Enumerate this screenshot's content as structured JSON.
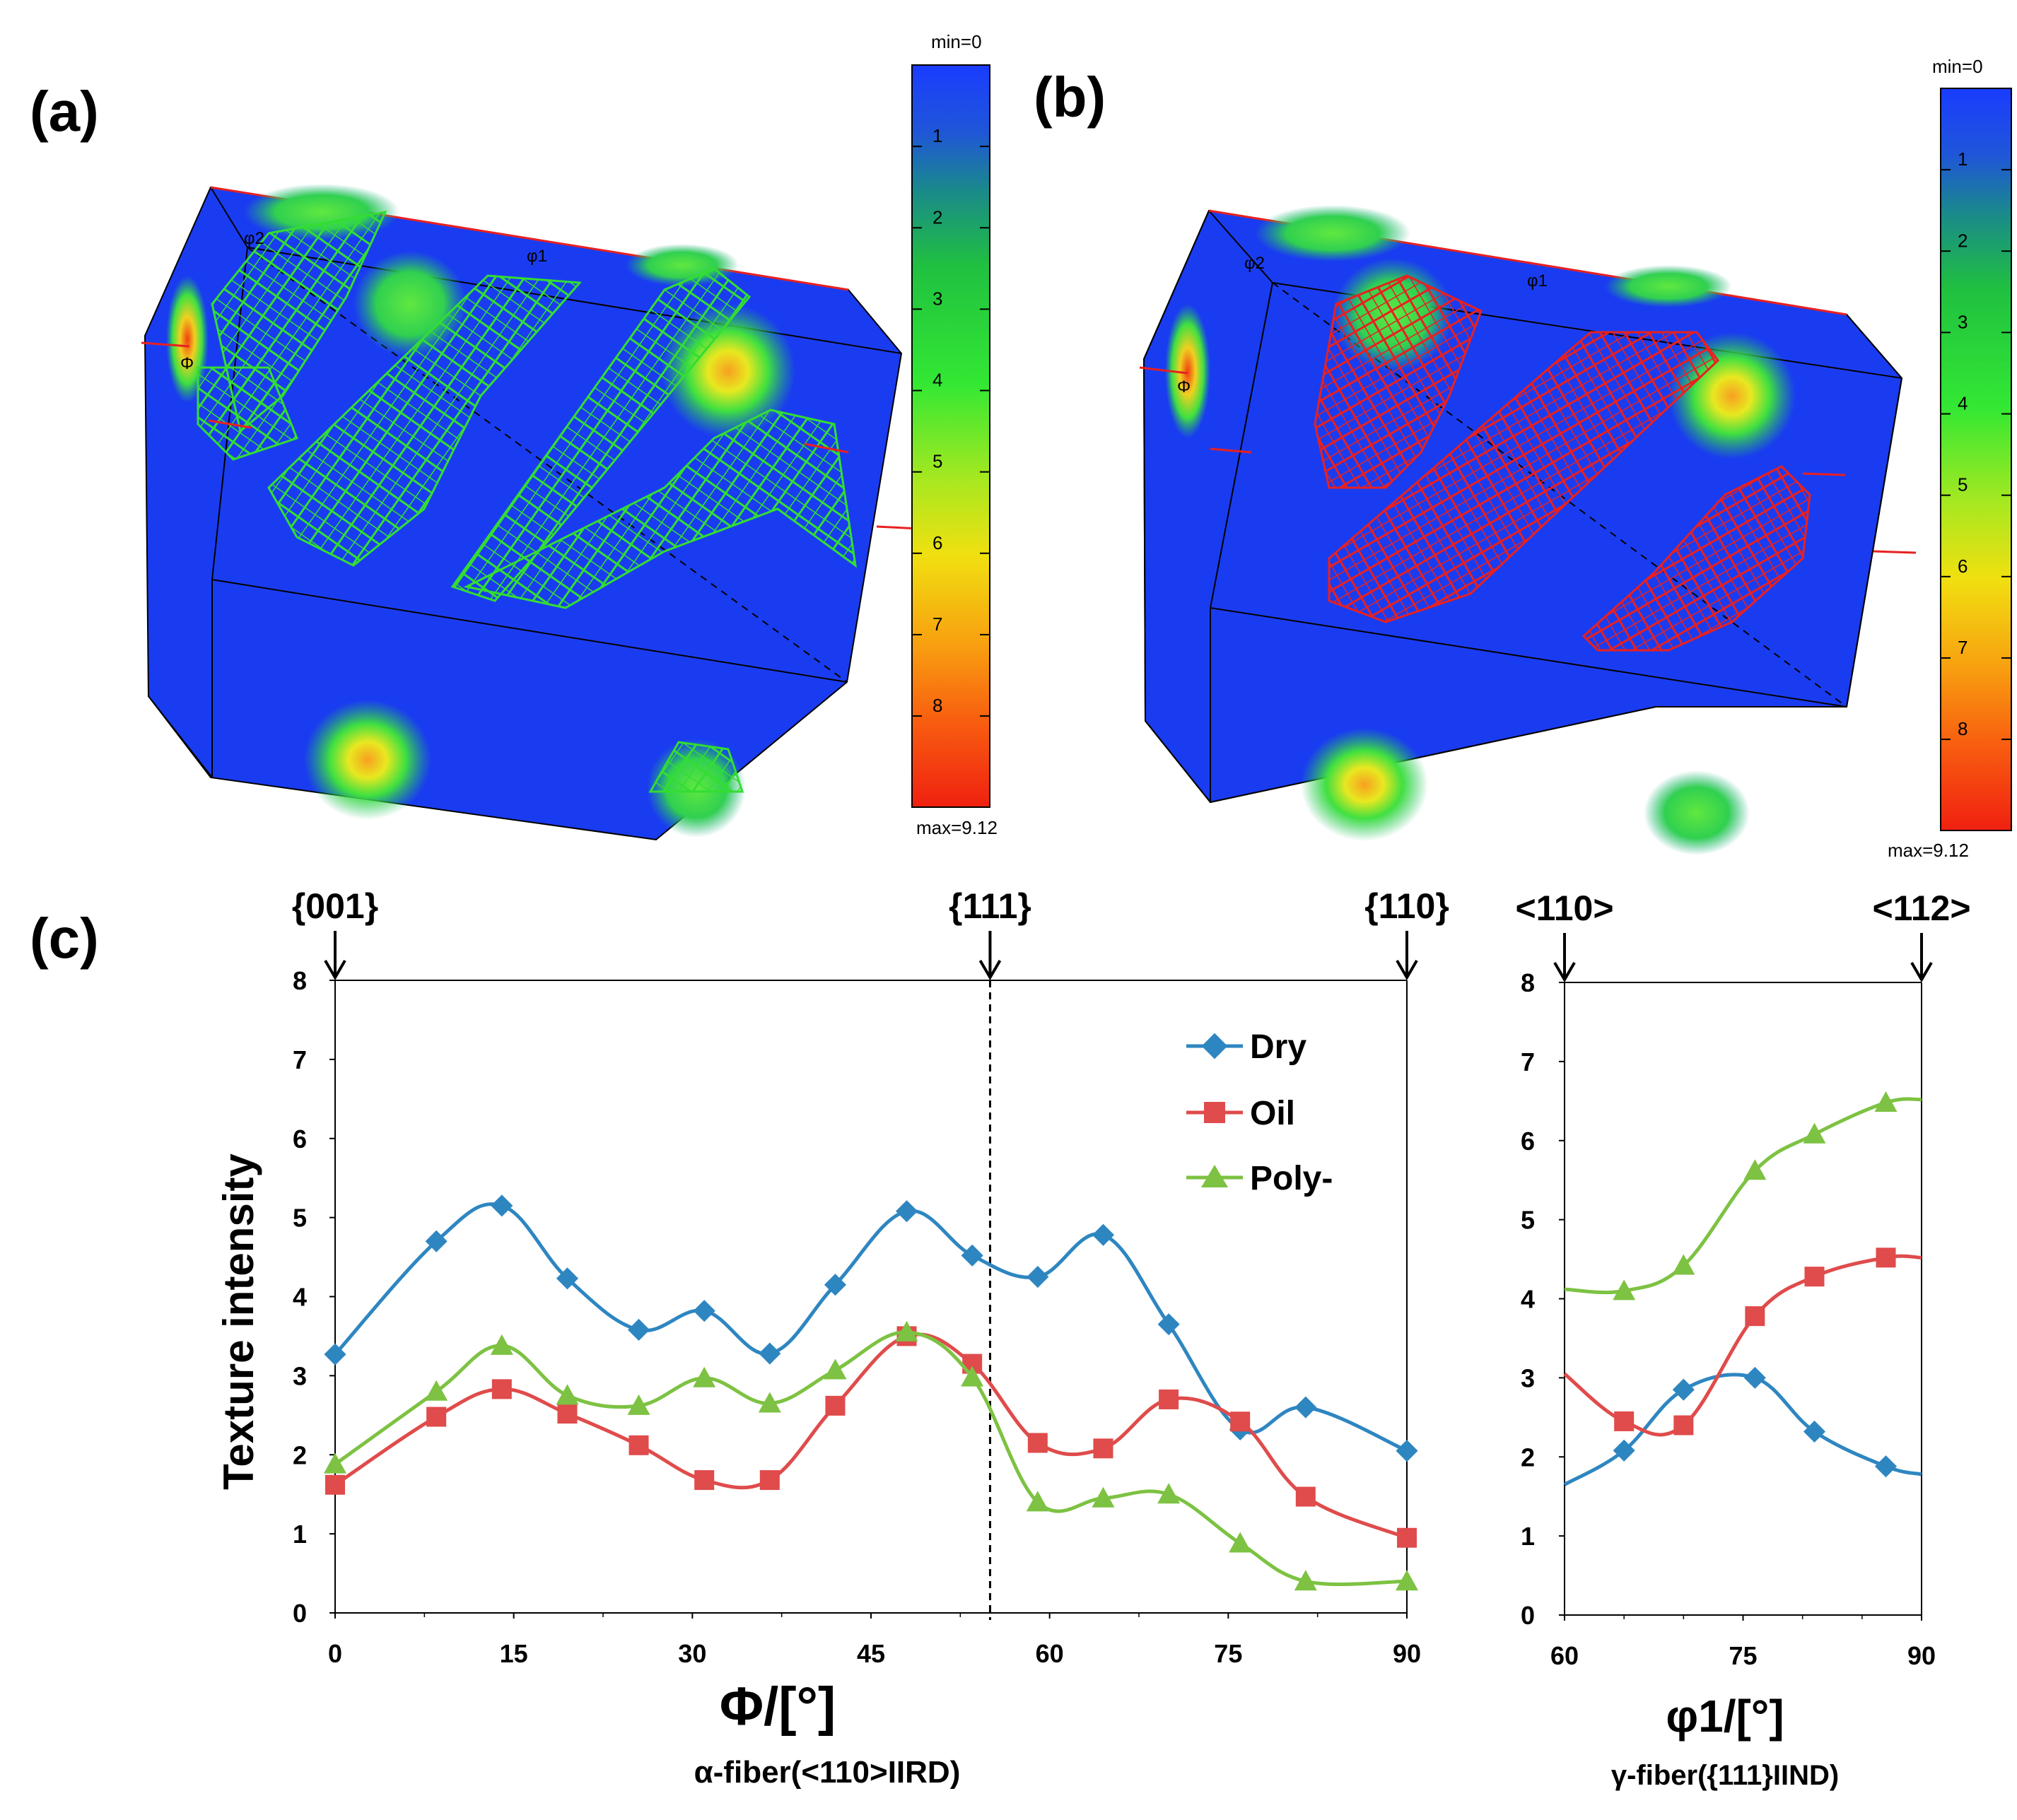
{
  "panels": {
    "a": {
      "label": "(a)",
      "wire_color": "#33dd33"
    },
    "b": {
      "label": "(b)",
      "wire_color": "#e82020"
    },
    "c": {
      "label": "(c)"
    }
  },
  "odf_axis_labels": {
    "phi2": "φ2",
    "phi1": "φ1",
    "Phi": "Φ"
  },
  "colorbar": {
    "min_label": "min=0",
    "max_label": "max=9.12",
    "ticks": [
      "1",
      "2",
      "3",
      "4",
      "5",
      "6",
      "7",
      "8"
    ],
    "max_value": 9.12
  },
  "legend": {
    "items": [
      "Dry",
      "Oil",
      "Poly-"
    ]
  },
  "colors": {
    "Dry": "#2e86c1",
    "Oil": "#e04b4b",
    "Poly-": "#7dc242"
  },
  "chart_data": [
    {
      "type": "line",
      "id": "alpha-fiber",
      "xlabel": "Φ/[°]",
      "subtitle": "α-fiber(<110>IIRD)",
      "ylabel": "Texture intensity",
      "xlim": [
        0,
        90
      ],
      "ylim": [
        0,
        8
      ],
      "xticks": [
        0,
        15,
        30,
        45,
        60,
        75,
        90
      ],
      "yticks": [
        0,
        1,
        2,
        3,
        4,
        5,
        6,
        7,
        8
      ],
      "dashed_line_x": 55,
      "top_markers": [
        {
          "label": "{001}",
          "x": 0
        },
        {
          "label": "{111}",
          "x": 55
        },
        {
          "label": "{110}",
          "x": 90
        }
      ],
      "x": [
        0,
        8.5,
        14,
        19.5,
        25.5,
        31,
        36.5,
        42,
        48,
        53.5,
        59,
        64.5,
        70,
        76,
        81.5,
        90
      ],
      "series": [
        {
          "name": "Dry",
          "marker": "diamond",
          "values": [
            3.27,
            4.7,
            5.15,
            4.23,
            3.58,
            3.82,
            3.28,
            4.15,
            5.08,
            4.52,
            4.25,
            4.78,
            3.65,
            2.32,
            2.6,
            2.05
          ]
        },
        {
          "name": "Oil",
          "marker": "square",
          "values": [
            1.62,
            2.48,
            2.83,
            2.52,
            2.12,
            1.68,
            1.68,
            2.62,
            3.5,
            3.15,
            2.15,
            2.08,
            2.7,
            2.42,
            1.47,
            0.95
          ]
        },
        {
          "name": "Poly-",
          "marker": "triangle",
          "values": [
            1.88,
            2.8,
            3.38,
            2.75,
            2.62,
            2.97,
            2.65,
            3.07,
            3.55,
            2.98,
            1.4,
            1.45,
            1.5,
            0.88,
            0.4,
            0.4
          ]
        }
      ]
    },
    {
      "type": "line",
      "id": "gamma-fiber",
      "xlabel": "φ1/[°]",
      "subtitle": "γ-fiber({111}IIND)",
      "xlim": [
        60,
        90
      ],
      "ylim": [
        0,
        8
      ],
      "xticks": [
        60,
        75,
        90
      ],
      "yticks": [
        0,
        1,
        2,
        3,
        4,
        5,
        6,
        7,
        8
      ],
      "top_markers": [
        {
          "label": "<110>",
          "x": 60
        },
        {
          "label": "<112>",
          "x": 90
        }
      ],
      "x": [
        60,
        65,
        70,
        76,
        81,
        87,
        90
      ],
      "marked_from_index": 1,
      "series": [
        {
          "name": "Dry",
          "marker": "diamond",
          "values": [
            1.65,
            2.08,
            2.85,
            3.0,
            2.32,
            1.88,
            1.78
          ]
        },
        {
          "name": "Oil",
          "marker": "square",
          "values": [
            3.05,
            2.45,
            2.4,
            3.78,
            4.28,
            4.52,
            4.52
          ]
        },
        {
          "name": "Poly-",
          "marker": "triangle",
          "values": [
            4.12,
            4.1,
            4.42,
            5.62,
            6.08,
            6.48,
            6.52
          ]
        }
      ]
    }
  ]
}
